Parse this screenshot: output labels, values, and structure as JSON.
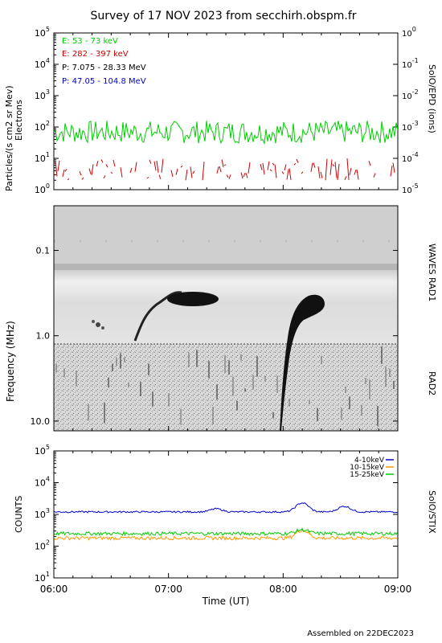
{
  "header": {
    "title": "Survey of 17 NOV 2023 from secchirh.obspm.fr",
    "footer": "Assembled on 22DEC2023"
  },
  "colors": {
    "e_low": "#00cc00",
    "e_high": "#cc0000",
    "p_low": "#000000",
    "p_high": "#0000cc",
    "stix_4_10": "#0000cc",
    "stix_10_15": "#ff9900",
    "stix_15_25": "#00cc00"
  },
  "chart_data": [
    {
      "type": "line",
      "panel": "SolO/EPD",
      "ylabel": "Particles/(s cm2 sr Mev)",
      "ylabel2": "Electrons",
      "right_label": "SolO/EPD (ions)",
      "y_scale": "log",
      "ylim": [
        1,
        100000
      ],
      "y_ticks": [
        "10^0",
        "10^1",
        "10^2",
        "10^3",
        "10^4",
        "10^5"
      ],
      "y2lim": [
        1e-05,
        1
      ],
      "y2_ticks": [
        "10^-5",
        "10^-4",
        "10^-3",
        "10^-2",
        "10^-1",
        "10^0"
      ],
      "xlim": [
        "06:00",
        "09:00"
      ],
      "legend_position": "top-left",
      "series": [
        {
          "name": "E: 53 - 73 keV",
          "approx_level": 60,
          "range": [
            30,
            160
          ]
        },
        {
          "name": "E: 282 - 397 keV",
          "approx_level": 5,
          "range": [
            2,
            10
          ]
        },
        {
          "name": "P: 7.075 - 28.33 MeV",
          "values": []
        },
        {
          "name": "P: 47.05 - 104.8 MeV",
          "values": []
        }
      ]
    },
    {
      "type": "heatmap",
      "panel": "radio spectrogram",
      "ylabel": "Frequency (MHz)",
      "y_scale": "log",
      "y_inverted": true,
      "ylim": [
        0.03,
        13
      ],
      "y_ticks": [
        "0.1",
        "1.0",
        "10.0"
      ],
      "xlim": [
        "06:00",
        "09:00"
      ],
      "band_labels": [
        "WAVES RAD1",
        "RAD2"
      ],
      "features": [
        {
          "kind": "type III burst",
          "start": "06:42",
          "freq_range_mhz": [
            1.0,
            0.3
          ]
        },
        {
          "kind": "type III burst",
          "start": "08:00",
          "freq_range_mhz": [
            13,
            0.3
          ]
        }
      ]
    },
    {
      "type": "line",
      "panel": "SolO/STIX",
      "ylabel": "COUNTS",
      "right_label": "SolO/STIX",
      "xlabel": "Time (UT)",
      "y_scale": "log",
      "ylim": [
        10,
        100000
      ],
      "y_ticks": [
        "10^1",
        "10^2",
        "10^3",
        "10^4",
        "10^5"
      ],
      "x_ticks": [
        "06:00",
        "07:00",
        "08:00",
        "09:00"
      ],
      "legend_position": "top-right",
      "series": [
        {
          "name": "4-10keV",
          "baseline": 1200,
          "peaks": [
            {
              "time": "07:25",
              "value": 1500
            },
            {
              "time": "08:10",
              "value": 2300
            },
            {
              "time": "08:32",
              "value": 1800
            }
          ]
        },
        {
          "name": "10-15keV",
          "baseline": 180,
          "peaks": [
            {
              "time": "08:10",
              "value": 320
            }
          ]
        },
        {
          "name": "15-25keV",
          "baseline": 250,
          "peaks": [
            {
              "time": "08:10",
              "value": 330
            }
          ]
        }
      ]
    }
  ],
  "labels": {
    "epd_ylabel": "Particles/(s cm2 sr Mev)",
    "epd_ylabel2": "Electrons",
    "epd_right": "SolO/EPD (ions)",
    "spec_ylabel": "Frequency (MHz)",
    "rad1": "WAVES RAD1",
    "rad2": "RAD2",
    "stix_ylabel": "COUNTS",
    "stix_right": "SolO/STIX",
    "xlabel": "Time (UT)"
  }
}
